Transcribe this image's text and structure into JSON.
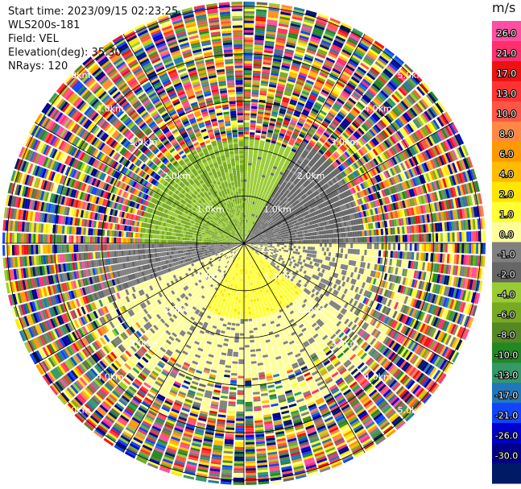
{
  "header": {
    "start_time": "Start time: 2023/09/15 02:23:25",
    "instrument": "WLS200s-181",
    "field": "Field: VEL",
    "elevation": "Elevation(deg): 35.30",
    "nrays": "NRays: 120"
  },
  "colorbar": {
    "unit": "m/s",
    "ticks": [
      "26.0",
      "21.0",
      "17.0",
      "13.0",
      "10.0",
      "8.0",
      "6.0",
      "4.0",
      "2.0",
      "1.0",
      "0.0",
      "-1.0",
      "-2.0",
      "-4.0",
      "-6.0",
      "-8.0",
      "-10.0",
      "-13.0",
      "-17.0",
      "-21.0",
      "-26.0",
      "-30.0"
    ],
    "colors": [
      "#ff4fa3",
      "#ff2f6e",
      "#ee1111",
      "#ff3333",
      "#ff5544",
      "#ff8844",
      "#ff9900",
      "#ffbb00",
      "#ffe600",
      "#ffff33",
      "#ffff99",
      "#808080",
      "#666666",
      "#99cc33",
      "#77aa22",
      "#558822",
      "#228822",
      "#339966",
      "#2277bb",
      "#1144ff",
      "#0000cc",
      "#00008b",
      "#001a66"
    ]
  },
  "chart_data": {
    "type": "heatmap",
    "title": "",
    "field": "VEL",
    "unit": "m/s",
    "rays": 120,
    "range_rings_km": [
      1.0,
      2.0,
      3.0,
      4.0,
      5.0
    ],
    "ring_labels": [
      "1.0km",
      "2.0km",
      "3.0km",
      "4.0km",
      "5.0km"
    ],
    "max_range_km": 5.1,
    "vmin": -30.0,
    "vmax": 30.0,
    "regions": [
      {
        "azimuth_deg": [
          270,
          360
        ],
        "range_km": [
          0,
          2.2
        ],
        "velocity": -7.0
      },
      {
        "azimuth_deg": [
          300,
          30
        ],
        "range_km": [
          0,
          2.2
        ],
        "velocity": -5.0
      },
      {
        "azimuth_deg": [
          30,
          90
        ],
        "range_km": [
          0,
          2.5
        ],
        "velocity": -2.0
      },
      {
        "azimuth_deg": [
          90,
          130
        ],
        "range_km": [
          0,
          4.5
        ],
        "velocity": 1.5
      },
      {
        "azimuth_deg": [
          110,
          210
        ],
        "range_km": [
          0,
          1.6
        ],
        "velocity": 6.0
      },
      {
        "azimuth_deg": [
          130,
          250
        ],
        "range_km": [
          0,
          4.0
        ],
        "velocity": 2.0
      },
      {
        "azimuth_deg": [
          250,
          270
        ],
        "range_km": [
          0,
          3.5
        ],
        "velocity": -1.0
      }
    ]
  }
}
